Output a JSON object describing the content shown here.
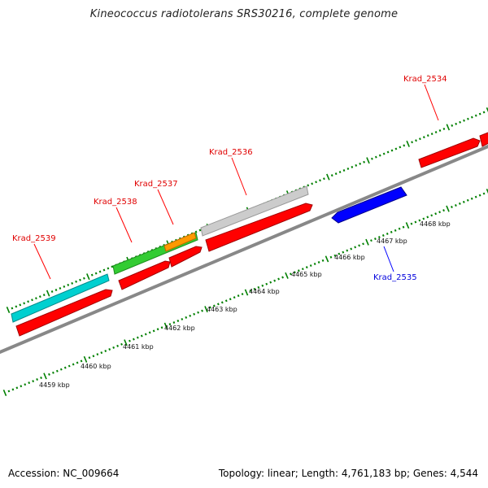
{
  "title": "Kineococcus radiotolerans SRS30216, complete genome",
  "footer": {
    "accession": "Accession: NC_009664",
    "summary": "Topology: linear; Length: 4,761,183 bp; Genes: 4,544"
  },
  "colors": {
    "forward_cds": "#ff0000",
    "reverse_cds": "#0000ff",
    "cyan_feature": "#00d0d0",
    "green_feature": "#33cc33",
    "orange_feature": "#ff9900",
    "gray_feature": "#c8c8c8",
    "backbone": "#888888",
    "ticks": "#008000"
  },
  "scale_labels": [
    "4459 kbp",
    "4460 kbp",
    "4461 kbp",
    "4462 kbp",
    "4463 kbp",
    "4464 kbp",
    "4465 kbp",
    "4466 kbp",
    "4467 kbp",
    "4468 kbp"
  ],
  "gene_labels": [
    {
      "text": "Krad_2539",
      "strand": "forward"
    },
    {
      "text": "Krad_2538",
      "strand": "forward"
    },
    {
      "text": "Krad_2537",
      "strand": "forward"
    },
    {
      "text": "Krad_2536",
      "strand": "forward"
    },
    {
      "text": "Krad_2534",
      "strand": "forward"
    },
    {
      "text": "Krad_2535",
      "strand": "reverse"
    }
  ]
}
